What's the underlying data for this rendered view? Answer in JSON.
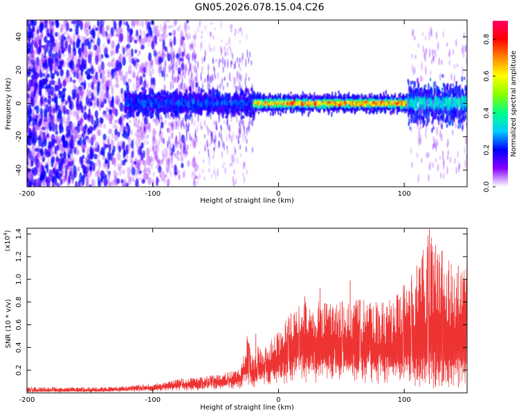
{
  "title": "GN05.2026.078.15.04.C26",
  "colors": {
    "snr_line": "#ee3333",
    "axis": "#000000",
    "background": "#ffffff"
  },
  "chart_data": [
    {
      "type": "heatmap",
      "name": "spectrogram",
      "xlabel": "Height of straight line (km)",
      "ylabel": "Frequency (Hz)",
      "xlim": [
        -200,
        150
      ],
      "ylim": [
        -50,
        50
      ],
      "xticks": [
        -200,
        -100,
        0,
        100
      ],
      "yticks": [
        -40,
        -20,
        0,
        20,
        40
      ],
      "colorbar": {
        "label": "Normalized spectral amplitude",
        "range": [
          0.0,
          0.9
        ],
        "ticks": [
          "0.0",
          "0.2",
          "0.4",
          "0.6",
          "0.8"
        ],
        "colormap": [
          "#ffffff",
          "#8800ff",
          "#0000ff",
          "#00ccff",
          "#00ff88",
          "#88ff00",
          "#ffff00",
          "#ff8800",
          "#ff0000",
          "#ff0066"
        ]
      },
      "regions": [
        {
          "x_range": [
            -200,
            -120
          ],
          "freq_range": [
            -50,
            50
          ],
          "amplitude": 0.1,
          "note": "scattered broadband"
        },
        {
          "x_range": [
            -120,
            -20
          ],
          "freq_range": [
            -10,
            10
          ],
          "amplitude": 0.2
        },
        {
          "x_range": [
            -20,
            105
          ],
          "freq_range": [
            -3,
            3
          ],
          "amplitude": 0.85,
          "note": "strong narrow band near 0 Hz"
        },
        {
          "x_range": [
            105,
            150
          ],
          "freq_range": [
            -15,
            15
          ],
          "amplitude": 0.35
        }
      ]
    },
    {
      "type": "line",
      "name": "snr",
      "xlabel": "Height of straight line (km)",
      "ylabel": "SNR (10 * v/v)",
      "y_multiplier": "(x10",
      "y_multiplier_exp": "4",
      "y_multiplier_close": ")",
      "xlim": [
        -200,
        150
      ],
      "ylim": [
        0,
        1.45
      ],
      "xticks": [
        -200,
        -100,
        0,
        100
      ],
      "yticks": [
        0.2,
        0.4,
        0.6,
        0.8,
        1.0,
        1.2,
        1.4
      ],
      "ytick_labels": [
        "0.2",
        "0.4",
        "0.6",
        "0.8",
        "1.0",
        "1.2",
        "1.4"
      ],
      "series": [
        {
          "name": "SNR",
          "envelope": {
            "x": [
              -200,
              -150,
              -120,
              -100,
              -80,
              -60,
              -40,
              -30,
              -25,
              -20,
              -15,
              -10,
              0,
              10,
              20,
              30,
              40,
              50,
              60,
              70,
              80,
              90,
              100,
              110,
              120,
              130,
              140,
              150
            ],
            "low": [
              0.01,
              0.01,
              0.02,
              0.03,
              0.05,
              0.06,
              0.08,
              0.1,
              0.12,
              0.12,
              0.14,
              0.15,
              0.18,
              0.2,
              0.22,
              0.24,
              0.25,
              0.25,
              0.25,
              0.24,
              0.22,
              0.2,
              0.18,
              0.12,
              0.08,
              0.06,
              0.05,
              0.05
            ],
            "high": [
              0.05,
              0.05,
              0.06,
              0.08,
              0.12,
              0.14,
              0.18,
              0.22,
              0.5,
              0.3,
              0.45,
              0.4,
              0.55,
              0.7,
              0.8,
              0.82,
              0.78,
              0.8,
              0.82,
              0.82,
              0.8,
              0.82,
              0.95,
              1.1,
              1.42,
              1.25,
              1.1,
              1.1
            ]
          },
          "peaks": [
            {
              "x": -18,
              "y": 0.52
            },
            {
              "x": 10,
              "y": 0.7
            },
            {
              "x": 21,
              "y": 0.85
            },
            {
              "x": 33,
              "y": 0.92
            },
            {
              "x": 57,
              "y": 0.99
            },
            {
              "x": 100,
              "y": 0.95
            },
            {
              "x": 110,
              "y": 1.12
            },
            {
              "x": 120,
              "y": 1.44
            },
            {
              "x": 125,
              "y": 1.3
            },
            {
              "x": 130,
              "y": 1.23
            },
            {
              "x": 143,
              "y": 1.12
            }
          ]
        }
      ]
    }
  ]
}
